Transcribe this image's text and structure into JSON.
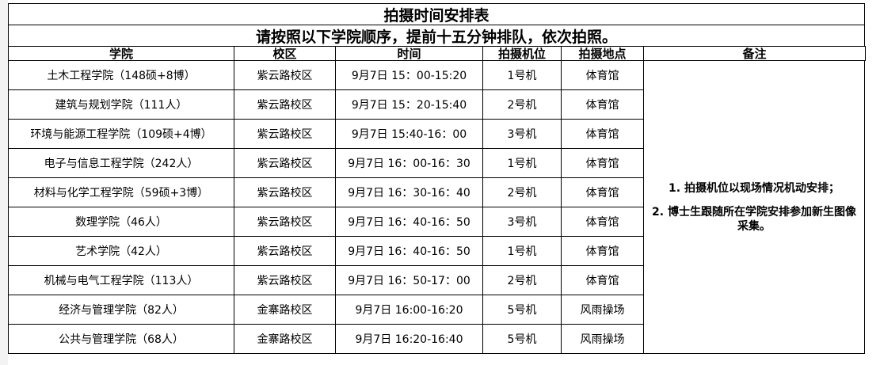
{
  "title": "拍摄时间安排表",
  "subtitle": "请按照以下学院顺序，提前十五分钟排队，依次拍照。",
  "table": {
    "headers": [
      "学院",
      "校区",
      "时间",
      "拍摄机位",
      "拍摄地点",
      "备注"
    ],
    "rows": [
      [
        "土木工程学院（148硕+8博）",
        "紫云路校区",
        "9月7日 15：00-15:20",
        "1号机",
        "体育馆"
      ],
      [
        "建筑与规划学院（111人）",
        "紫云路校区",
        "9月7日 15：20-15:40",
        "2号机",
        "体育馆"
      ],
      [
        "环境与能源工程学院（109硕+4博）",
        "紫云路校区",
        "9月7日 15:40-16：00",
        "3号机",
        "体育馆"
      ],
      [
        "电子与信息工程学院（242人）",
        "紫云路校区",
        "9月7日 16：00-16：30",
        "1号机",
        "体育馆"
      ],
      [
        "材料与化学工程学院（59硕+3博）",
        "紫云路校区",
        "9月7日 16：30-16：40",
        "2号机",
        "体育馆"
      ],
      [
        "数理学院（46人）",
        "紫云路校区",
        "9月7日 16：40-16：50",
        "3号机",
        "体育馆"
      ],
      [
        "艺术学院（42人）",
        "紫云路校区",
        "9月7日 16：40-16：50",
        "1号机",
        "体育馆"
      ],
      [
        "机械与电气工程学院（113人）",
        "紫云路校区",
        "9月7日 16：50-17：00",
        "2号机",
        "体育馆"
      ],
      [
        "经济与管理学院（82人）",
        "金寨路校区",
        "9月7日 16:00-16:20",
        "5号机",
        "风雨操场"
      ],
      [
        "公共与管理学院（68人）",
        "金寨路校区",
        "9月7日 16:20-16:40",
        "5号机",
        "风雨操场"
      ]
    ],
    "note": [
      "1. 拍摄机位以现场情况机动安排；",
      "2. 博士生跟随所在学院安排参加新生图像采集。"
    ]
  }
}
